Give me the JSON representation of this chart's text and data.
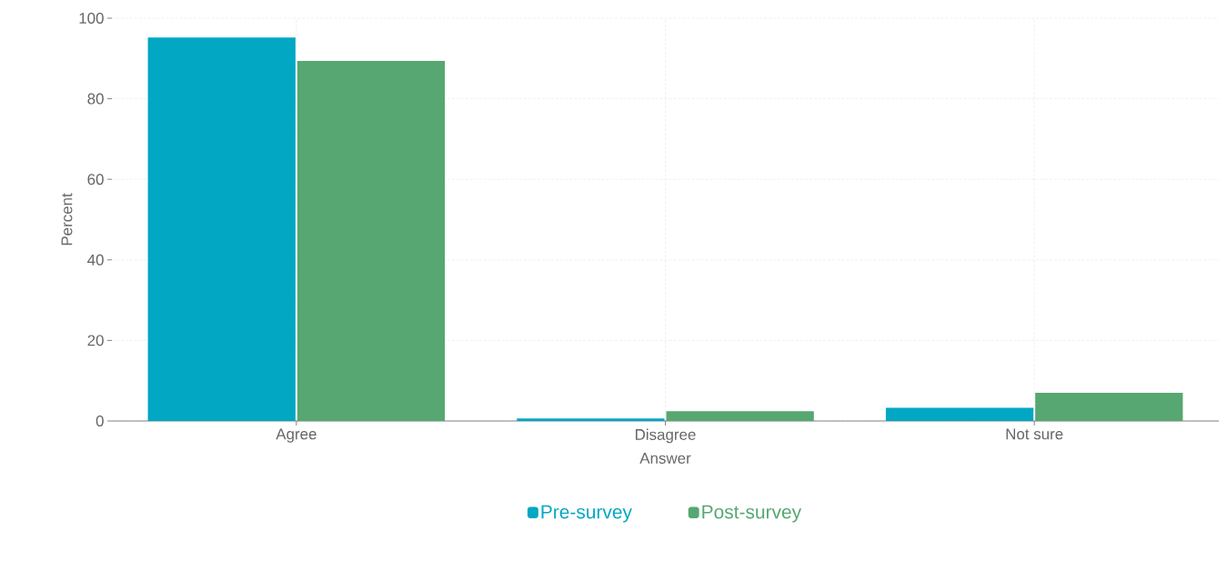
{
  "chart_data": {
    "type": "bar",
    "xlabel": "Answer",
    "ylabel": "Percent",
    "categories": [
      "Agree",
      "Disagree",
      "Not sure"
    ],
    "series": [
      {
        "name": "Pre-survey",
        "color": "#02a7c3",
        "values": [
          95.2,
          0.6,
          3.3
        ]
      },
      {
        "name": "Post-survey",
        "color": "#56a771",
        "values": [
          89.4,
          2.4,
          7.0
        ]
      }
    ],
    "ylim": [
      0,
      100
    ],
    "yticks": [
      0,
      20,
      40,
      60,
      80,
      100
    ],
    "grid": true,
    "legend": "bottom"
  }
}
